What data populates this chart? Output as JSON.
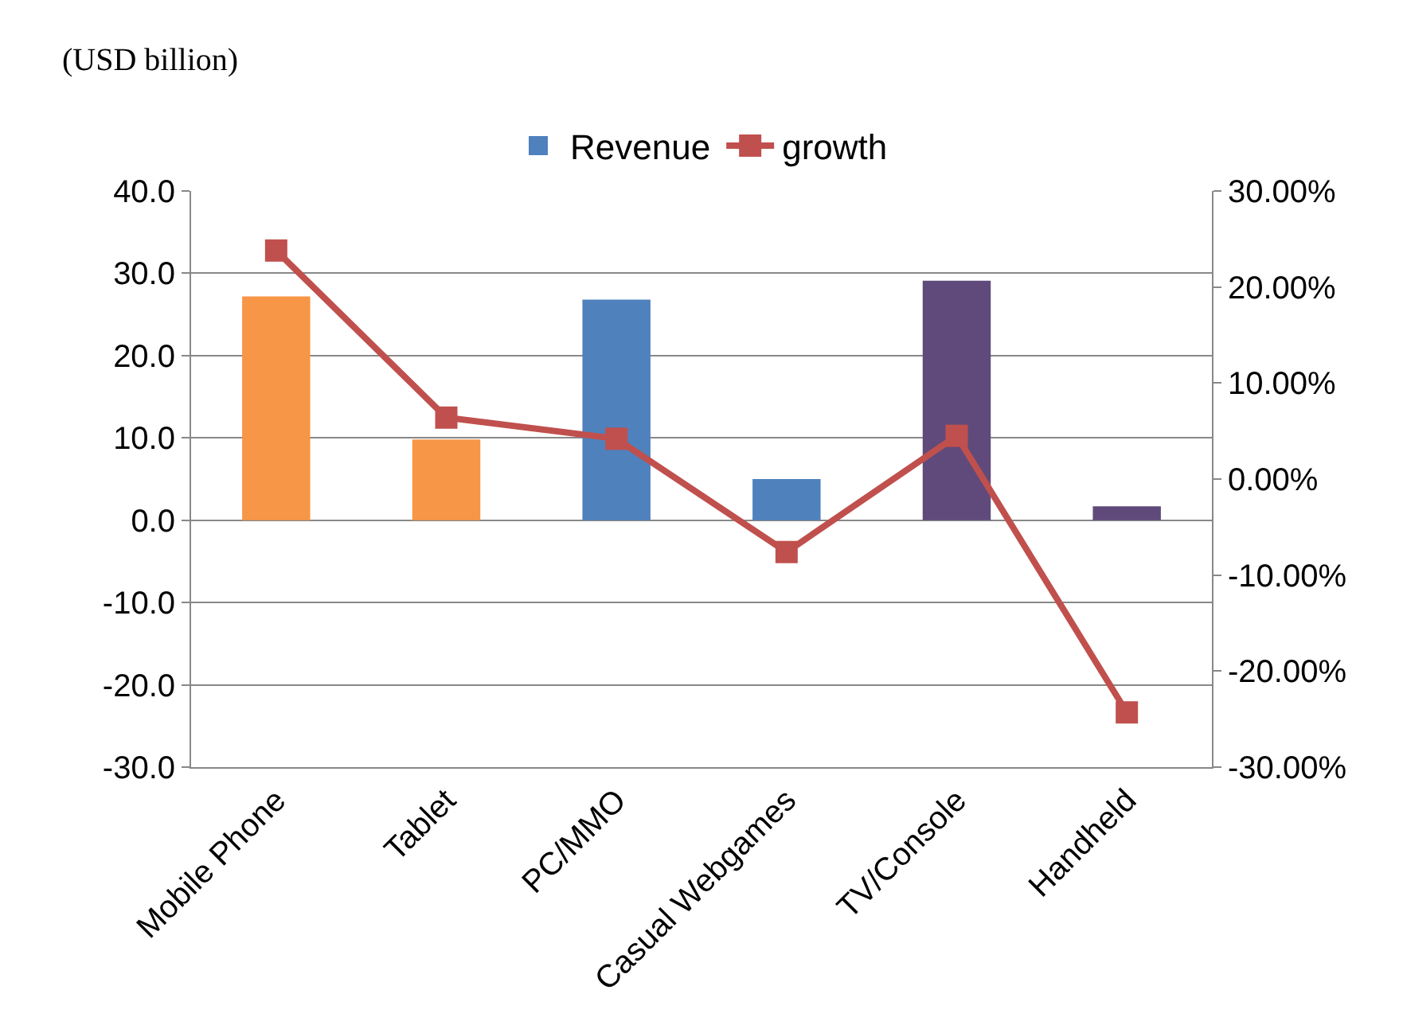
{
  "chart_data": {
    "type": "bar",
    "ylabel": "(USD billion)",
    "categories": [
      "Mobile Phone",
      "Tablet",
      "PC/MMO",
      "Casual Webgames",
      "TV/Console",
      "Handheld"
    ],
    "series": [
      {
        "name": "Revenue",
        "color": "#4f81bd",
        "colors": [
          "#f79646",
          "#f79646",
          "#4f81bd",
          "#4f81bd",
          "#604a7b",
          "#604a7b"
        ],
        "values": [
          27.2,
          9.8,
          26.8,
          5.0,
          29.1,
          1.7
        ]
      },
      {
        "name": "growth",
        "type": "line",
        "axis": "y2",
        "color": "#c0504d",
        "marker": "square",
        "values": [
          23.8,
          6.4,
          4.2,
          -7.6,
          4.5,
          -24.3
        ]
      }
    ],
    "ylim": [
      -30,
      40
    ],
    "yticks": [
      {
        "value": -30,
        "label": "-30.0"
      },
      {
        "value": -20,
        "label": "-20.0"
      },
      {
        "value": -10,
        "label": "-10.0"
      },
      {
        "value": 0,
        "label": "0.0"
      },
      {
        "value": 10,
        "label": "10.0"
      },
      {
        "value": 20,
        "label": "20.0"
      },
      {
        "value": 30,
        "label": "30.0"
      },
      {
        "value": 40,
        "label": "40.0"
      }
    ],
    "y2lim": [
      -30,
      30
    ],
    "y2ticks": [
      {
        "value": -30,
        "label": "-30.00%"
      },
      {
        "value": -20,
        "label": "-20.00%"
      },
      {
        "value": -10,
        "label": "-10.00%"
      },
      {
        "value": 0,
        "label": "0.00%"
      },
      {
        "value": 10,
        "label": "10.00%"
      },
      {
        "value": 20,
        "label": "20.00%"
      },
      {
        "value": 30,
        "label": "30.00%"
      }
    ],
    "grid": "y",
    "legend": "top"
  }
}
